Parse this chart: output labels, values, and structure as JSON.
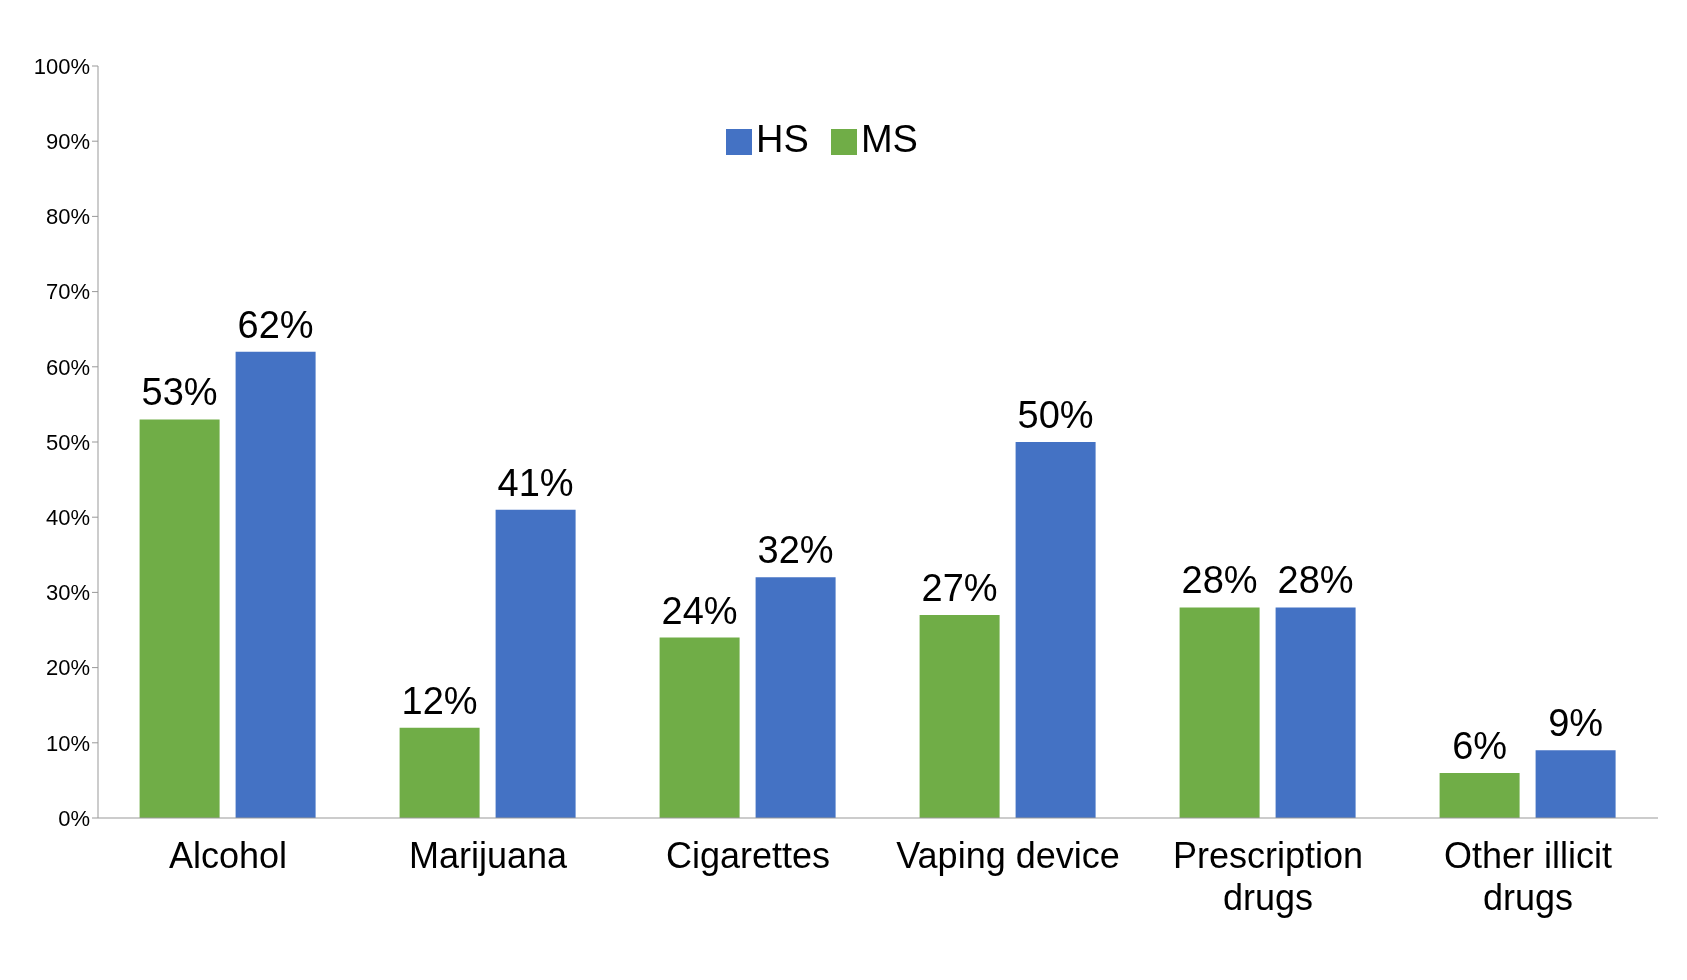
{
  "chart_data": {
    "type": "bar",
    "categories": [
      "Alcohol",
      "Marijuana",
      "Cigarettes",
      "Vaping device",
      "Prescription drugs",
      "Other illicit drugs"
    ],
    "series": [
      {
        "name": "MS",
        "color": "#70ad47",
        "values": [
          53,
          12,
          24,
          27,
          28,
          6
        ],
        "value_labels": [
          "53%",
          "12%",
          "24%",
          "27%",
          "28%",
          "6%"
        ]
      },
      {
        "name": "HS",
        "color": "#4472c4",
        "values": [
          62,
          41,
          32,
          50,
          28,
          9
        ],
        "value_labels": [
          "62%",
          "41%",
          "32%",
          "50%",
          "28%",
          "9%"
        ]
      }
    ],
    "ylim": [
      0,
      100
    ],
    "yticks": [
      {
        "value": 0,
        "label": "0%"
      },
      {
        "value": 10,
        "label": "10%"
      },
      {
        "value": 20,
        "label": "20%"
      },
      {
        "value": 30,
        "label": "30%"
      },
      {
        "value": 40,
        "label": "40%"
      },
      {
        "value": 50,
        "label": "50%"
      },
      {
        "value": 60,
        "label": "60%"
      },
      {
        "value": 70,
        "label": "70%"
      },
      {
        "value": 80,
        "label": "80%"
      },
      {
        "value": 90,
        "label": "90%"
      },
      {
        "value": 100,
        "label": "100%"
      }
    ],
    "grid": false,
    "legend": "top"
  }
}
